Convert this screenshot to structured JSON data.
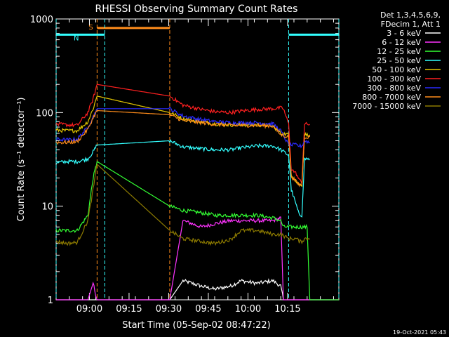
{
  "chart_data": {
    "type": "line",
    "title": "RHESSI Observing Summary Count Rates",
    "xlabel": "Start Time (05-Sep-02 08:47:22)",
    "ylabel": "Count Rate (s⁻¹ detector⁻¹)",
    "yscale": "log",
    "ylim": [
      1,
      1000
    ],
    "xlim_minutes": [
      0,
      107
    ],
    "x_ticks": [
      {
        "label": "09:00",
        "minute": 12.6
      },
      {
        "label": "09:15",
        "minute": 27.6
      },
      {
        "label": "09:30",
        "minute": 42.6
      },
      {
        "label": "09:45",
        "minute": 57.6
      },
      {
        "label": "10:00",
        "minute": 72.6
      },
      {
        "label": "10:15",
        "minute": 87.6
      }
    ],
    "y_ticks": [
      "1",
      "10",
      "100",
      "1000"
    ],
    "legend_header": [
      "Det 1,3,4,5,6,9,",
      "FDecim 1, Att 1"
    ],
    "legend_position": "right",
    "series": [
      {
        "name": "3 - 6 keV",
        "color": "#ffffff",
        "points": [
          [
            0,
            1
          ],
          [
            12,
            1
          ],
          [
            43,
            1
          ],
          [
            48,
            1.6
          ],
          [
            55,
            1.4
          ],
          [
            60,
            1.3
          ],
          [
            66,
            1.4
          ],
          [
            70,
            1.6
          ],
          [
            76,
            1.5
          ],
          [
            82,
            1.6
          ],
          [
            85,
            1.4
          ],
          [
            86,
            1
          ],
          [
            107,
            1
          ]
        ]
      },
      {
        "name": "6 - 12 keV",
        "color": "#ff33ff",
        "points": [
          [
            0,
            1
          ],
          [
            12,
            1
          ],
          [
            14,
            1.5
          ],
          [
            15.5,
            1
          ],
          [
            43,
            1
          ],
          [
            48,
            7
          ],
          [
            55,
            6
          ],
          [
            60,
            6.5
          ],
          [
            66,
            7
          ],
          [
            70,
            7
          ],
          [
            76,
            7
          ],
          [
            82,
            7
          ],
          [
            85,
            7.5
          ],
          [
            86,
            1
          ],
          [
            107,
            1
          ]
        ]
      },
      {
        "name": "12 - 25 keV",
        "color": "#33ff33",
        "points": [
          [
            0,
            5.5
          ],
          [
            4,
            5.5
          ],
          [
            8,
            5.5
          ],
          [
            12,
            8
          ],
          [
            14,
            20
          ],
          [
            15.5,
            30
          ],
          [
            43,
            10
          ],
          [
            48,
            9
          ],
          [
            55,
            8.5
          ],
          [
            60,
            8
          ],
          [
            66,
            8
          ],
          [
            70,
            8
          ],
          [
            76,
            8
          ],
          [
            82,
            7.5
          ],
          [
            85,
            7
          ],
          [
            86,
            6
          ],
          [
            95,
            6
          ],
          [
            96,
            1
          ],
          [
            107,
            1
          ]
        ]
      },
      {
        "name": "25 - 50 keV",
        "color": "#33ffff",
        "points": [
          [
            0,
            29
          ],
          [
            4,
            30
          ],
          [
            8,
            30
          ],
          [
            12,
            32
          ],
          [
            14,
            38
          ],
          [
            15.5,
            45
          ],
          [
            43,
            50
          ],
          [
            48,
            43
          ],
          [
            55,
            41
          ],
          [
            60,
            40
          ],
          [
            66,
            40
          ],
          [
            70,
            42
          ],
          [
            76,
            44
          ],
          [
            82,
            44
          ],
          [
            85,
            40
          ],
          [
            88,
            35
          ],
          [
            89,
            15
          ],
          [
            91,
            10
          ],
          [
            92,
            8
          ],
          [
            93,
            8
          ],
          [
            94,
            32
          ],
          [
            96,
            32
          ]
        ]
      },
      {
        "name": "50 - 100 keV",
        "color": "#e6c800",
        "points": [
          [
            0,
            65
          ],
          [
            4,
            64
          ],
          [
            8,
            64
          ],
          [
            12,
            80
          ],
          [
            14,
            110
          ],
          [
            15.5,
            150
          ],
          [
            43,
            100
          ],
          [
            48,
            86
          ],
          [
            55,
            80
          ],
          [
            60,
            76
          ],
          [
            66,
            74
          ],
          [
            70,
            74
          ],
          [
            76,
            74
          ],
          [
            82,
            72
          ],
          [
            85,
            60
          ],
          [
            88,
            58
          ],
          [
            89,
            22
          ],
          [
            91,
            18
          ],
          [
            92,
            17
          ],
          [
            93,
            17
          ],
          [
            94,
            58
          ],
          [
            96,
            58
          ]
        ]
      },
      {
        "name": "100 - 300 keV",
        "color": "#ff2020",
        "points": [
          [
            0,
            75
          ],
          [
            4,
            74
          ],
          [
            8,
            73
          ],
          [
            12,
            100
          ],
          [
            14,
            140
          ],
          [
            15.5,
            200
          ],
          [
            43,
            150
          ],
          [
            48,
            120
          ],
          [
            55,
            108
          ],
          [
            60,
            102
          ],
          [
            66,
            100
          ],
          [
            70,
            104
          ],
          [
            76,
            108
          ],
          [
            82,
            110
          ],
          [
            85,
            112
          ],
          [
            86,
            110
          ],
          [
            88,
            75
          ],
          [
            89,
            25
          ],
          [
            91,
            22
          ],
          [
            92,
            19
          ],
          [
            93,
            18
          ],
          [
            94,
            75
          ],
          [
            96,
            75
          ]
        ]
      },
      {
        "name": "300 - 800 keV",
        "color": "#2b2bff",
        "points": [
          [
            0,
            52
          ],
          [
            4,
            51
          ],
          [
            8,
            52
          ],
          [
            12,
            70
          ],
          [
            14,
            90
          ],
          [
            15.5,
            110
          ],
          [
            43,
            110
          ],
          [
            48,
            92
          ],
          [
            55,
            84
          ],
          [
            60,
            80
          ],
          [
            66,
            78
          ],
          [
            70,
            78
          ],
          [
            76,
            78
          ],
          [
            82,
            76
          ],
          [
            85,
            64
          ],
          [
            88,
            45
          ],
          [
            91,
            45
          ],
          [
            92,
            44
          ],
          [
            93,
            44
          ],
          [
            94,
            50
          ],
          [
            96,
            48
          ]
        ]
      },
      {
        "name": "800 - 7000 keV",
        "color": "#ff8c1a",
        "points": [
          [
            0,
            48
          ],
          [
            4,
            48
          ],
          [
            8,
            49
          ],
          [
            12,
            66
          ],
          [
            14,
            88
          ],
          [
            15.5,
            105
          ],
          [
            43,
            95
          ],
          [
            48,
            82
          ],
          [
            55,
            78
          ],
          [
            60,
            75
          ],
          [
            66,
            73
          ],
          [
            70,
            73
          ],
          [
            76,
            73
          ],
          [
            82,
            72
          ],
          [
            85,
            58
          ],
          [
            88,
            55
          ],
          [
            89,
            21
          ],
          [
            91,
            18
          ],
          [
            92,
            17
          ],
          [
            93,
            17
          ],
          [
            94,
            55
          ],
          [
            96,
            55
          ]
        ]
      },
      {
        "name": "7000 - 15000 keV",
        "color": "#8c7a00",
        "points": [
          [
            0,
            4.2
          ],
          [
            4,
            4.0
          ],
          [
            8,
            4.1
          ],
          [
            12,
            7
          ],
          [
            14,
            15
          ],
          [
            15.5,
            28
          ],
          [
            43,
            5.5
          ],
          [
            48,
            4.5
          ],
          [
            55,
            4.2
          ],
          [
            60,
            4.0
          ],
          [
            66,
            4.4
          ],
          [
            70,
            5.5
          ],
          [
            76,
            5.5
          ],
          [
            82,
            5.0
          ],
          [
            85,
            5.0
          ],
          [
            88,
            4.5
          ],
          [
            91,
            4.5
          ],
          [
            92,
            4.2
          ],
          [
            93,
            4.2
          ],
          [
            94,
            4.5
          ],
          [
            96,
            4.5
          ]
        ]
      }
    ],
    "annotations": [
      {
        "text": "S",
        "color": "#ff8c1a"
      },
      {
        "text": "N",
        "color": "#33ffff"
      }
    ],
    "shading": [
      {
        "kind": "attenuator",
        "label": "S",
        "color": "#ff8c1a",
        "start_minute": 15.5,
        "end_minute": 43,
        "level": 800
      },
      {
        "kind": "night",
        "label": "N",
        "color": "#33ffff",
        "start_minute": 0,
        "end_minute": 18.4,
        "level": 680
      },
      {
        "kind": "night",
        "label": "N",
        "color": "#33ffff",
        "start_minute": 88,
        "end_minute": 107,
        "level": 680
      }
    ]
  },
  "footer": {
    "date": "19-Oct-2021 05:43"
  }
}
